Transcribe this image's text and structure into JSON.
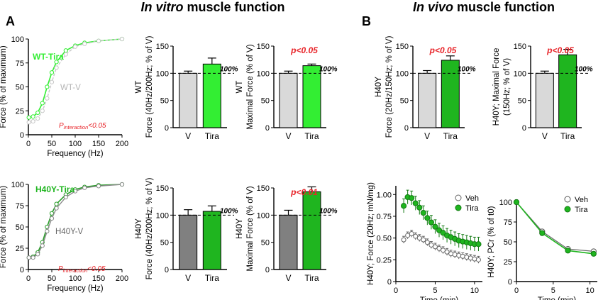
{
  "header": {
    "invitro_italic": "In vitro",
    "invitro_rest": " muscle function",
    "invivo_italic": "In vivo",
    "invivo_rest": " muscle function",
    "panel_a": "A",
    "panel_b": "B"
  },
  "colors": {
    "wt_v_bar": "#d9d9d9",
    "tira_light": "#33ee33",
    "tira_dark": "#1fb51f",
    "h40y_v_bar": "#808080",
    "wt_v_curve": "#c8c8c8",
    "h40y_v_curve": "#8a8a8a",
    "h40y_tira_curve": "#2a9d2a",
    "significance": "#e8252a"
  },
  "chart_data": [
    {
      "id": "wt-freq",
      "type": "line",
      "ylabel": "Force (% of maximum)",
      "xlabel": "Frequency (Hz)",
      "xlim": [
        0,
        200
      ],
      "ylim": [
        0,
        100
      ],
      "xticks": [
        "0",
        "50",
        "100",
        "150",
        "200"
      ],
      "yticks": [
        "0",
        "25",
        "50",
        "75",
        "100"
      ],
      "series": [
        {
          "name": "WT-Tira",
          "x": [
            1,
            10,
            20,
            30,
            40,
            50,
            60,
            80,
            100,
            120,
            150,
            200
          ],
          "y": [
            18,
            19,
            23,
            33,
            50,
            65,
            76,
            88,
            93,
            96,
            98,
            100
          ]
        },
        {
          "name": "WT-V",
          "x": [
            1,
            10,
            20,
            30,
            40,
            50,
            60,
            80,
            100,
            120,
            150,
            200
          ],
          "y": [
            13,
            14,
            17,
            25,
            38,
            55,
            70,
            84,
            92,
            95,
            98,
            100
          ]
        }
      ],
      "annotation": {
        "p": "P",
        "sub": "interaction",
        "rest": "<0.05"
      }
    },
    {
      "id": "h40y-freq",
      "type": "line",
      "ylabel": "Force (% of maximum)",
      "xlabel": "Frequency (Hz)",
      "xlim": [
        0,
        200
      ],
      "ylim": [
        0,
        100
      ],
      "xticks": [
        "0",
        "50",
        "100",
        "150",
        "200"
      ],
      "yticks": [
        "0",
        "25",
        "50",
        "75",
        "100"
      ],
      "series": [
        {
          "name": "H40Y-Tira",
          "x": [
            1,
            10,
            20,
            30,
            40,
            50,
            60,
            80,
            100,
            120,
            150,
            200
          ],
          "y": [
            14,
            15,
            20,
            32,
            50,
            66,
            77,
            88,
            94,
            97,
            99,
            100
          ]
        },
        {
          "name": "H40Y-V",
          "x": [
            1,
            10,
            20,
            30,
            40,
            50,
            60,
            80,
            100,
            120,
            150,
            200
          ],
          "y": [
            14,
            14,
            18,
            28,
            45,
            60,
            72,
            85,
            92,
            96,
            98,
            100
          ]
        }
      ],
      "annotation": {
        "p": "P",
        "sub": "interaction",
        "rest": "<0.05"
      }
    },
    {
      "id": "wt-ratio",
      "type": "bar",
      "side_label": "WT",
      "ylabel": "Force (40Hz/200Hz; % of V)",
      "ylim": [
        0,
        150
      ],
      "yticks": [
        "0",
        "50",
        "100",
        "150"
      ],
      "categories": [
        "V",
        "Tira"
      ],
      "values": [
        100,
        117
      ],
      "errors": [
        4,
        11
      ],
      "ref_label": "100%",
      "significance": ""
    },
    {
      "id": "wt-max",
      "type": "bar",
      "side_label": "WT",
      "ylabel": "Maximal Force (% of V)",
      "ylim": [
        0,
        150
      ],
      "yticks": [
        "0",
        "50",
        "100",
        "150"
      ],
      "categories": [
        "V",
        "Tira"
      ],
      "values": [
        100,
        114
      ],
      "errors": [
        4,
        3
      ],
      "ref_label": "100%",
      "significance": "p<0.05"
    },
    {
      "id": "h40y-ratio",
      "type": "bar",
      "side_label": "H40Y",
      "ylabel": "Force (40Hz/200Hz; % of V)",
      "ylim": [
        0,
        150
      ],
      "yticks": [
        "0",
        "50",
        "100",
        "150"
      ],
      "categories": [
        "V",
        "Tira"
      ],
      "values": [
        100,
        107
      ],
      "errors": [
        10,
        10
      ],
      "ref_label": "100%",
      "significance": ""
    },
    {
      "id": "h40y-max",
      "type": "bar",
      "side_label": "H40Y",
      "ylabel": "Maximal Force (% of V)",
      "ylim": [
        0,
        150
      ],
      "yticks": [
        "0",
        "50",
        "100",
        "150"
      ],
      "categories": [
        "V",
        "Tira"
      ],
      "values": [
        100,
        143
      ],
      "errors": [
        9,
        9
      ],
      "ref_label": "100%",
      "significance": "p<0.01"
    },
    {
      "id": "invivo-ratio",
      "type": "bar",
      "side_label": "H40Y",
      "ylabel": "Force (20Hz/150Hz; % of V)",
      "ylim": [
        0,
        150
      ],
      "yticks": [
        "0",
        "50",
        "100",
        "150"
      ],
      "categories": [
        "V",
        "Tira"
      ],
      "values": [
        100,
        124
      ],
      "errors": [
        5,
        8
      ],
      "ref_label": "100%",
      "significance": "p<0.05"
    },
    {
      "id": "invivo-max",
      "type": "bar",
      "side_label": "H40Y; Maximal Force",
      "ylabel": "(150Hz; % of V)",
      "ylim": [
        0,
        150
      ],
      "yticks": [
        "0",
        "50",
        "100",
        "150"
      ],
      "categories": [
        "V",
        "Tira"
      ],
      "values": [
        100,
        134
      ],
      "errors": [
        4,
        10
      ],
      "ref_label": "100%",
      "significance": "p<0.05"
    },
    {
      "id": "invivo-time",
      "type": "scatter",
      "ylabel": "H40Y; Force (20Hz; mN/mg)",
      "xlabel": "Time (min)",
      "xlim": [
        0,
        11
      ],
      "ylim": [
        0,
        1.1
      ],
      "xticks": [
        "0",
        "5",
        "10"
      ],
      "yticks": [
        "0",
        "0.25",
        "0.50",
        "0.75",
        "1.00"
      ],
      "series": [
        {
          "name": "Veh",
          "x": [
            1,
            1.5,
            2,
            2.5,
            3,
            3.5,
            4,
            4.5,
            5,
            5.5,
            6,
            6.5,
            7,
            7.5,
            8,
            8.5,
            9,
            9.5,
            10,
            10.5
          ],
          "y": [
            0.48,
            0.53,
            0.55,
            0.52,
            0.5,
            0.48,
            0.45,
            0.42,
            0.4,
            0.38,
            0.36,
            0.34,
            0.32,
            0.31,
            0.3,
            0.29,
            0.28,
            0.27,
            0.26,
            0.25
          ],
          "err": 0.04
        },
        {
          "name": "Tira",
          "x": [
            1,
            1.5,
            2,
            2.5,
            3,
            3.5,
            4,
            4.5,
            5,
            5.5,
            6,
            6.5,
            7,
            7.5,
            8,
            8.5,
            9,
            9.5,
            10,
            10.5
          ],
          "y": [
            0.87,
            0.97,
            0.96,
            0.9,
            0.85,
            0.79,
            0.73,
            0.68,
            0.63,
            0.59,
            0.56,
            0.53,
            0.51,
            0.49,
            0.47,
            0.46,
            0.45,
            0.44,
            0.43,
            0.43
          ],
          "err": 0.08
        }
      ]
    },
    {
      "id": "invivo-pcr",
      "type": "line",
      "ylabel": "H40Y; PCr (% of t0)",
      "xlabel": "Time (min)",
      "xlim": [
        0,
        11
      ],
      "ylim": [
        0,
        100
      ],
      "xticks": [
        "0",
        "5",
        "10"
      ],
      "yticks": [
        "0",
        "25",
        "50",
        "75",
        "100"
      ],
      "series": [
        {
          "name": "Veh",
          "x": [
            0,
            3.5,
            7,
            10.5
          ],
          "y": [
            100,
            63,
            41,
            38
          ]
        },
        {
          "name": "Tira",
          "x": [
            0,
            3.5,
            7,
            10.5
          ],
          "y": [
            100,
            61,
            39,
            35
          ]
        }
      ]
    }
  ]
}
